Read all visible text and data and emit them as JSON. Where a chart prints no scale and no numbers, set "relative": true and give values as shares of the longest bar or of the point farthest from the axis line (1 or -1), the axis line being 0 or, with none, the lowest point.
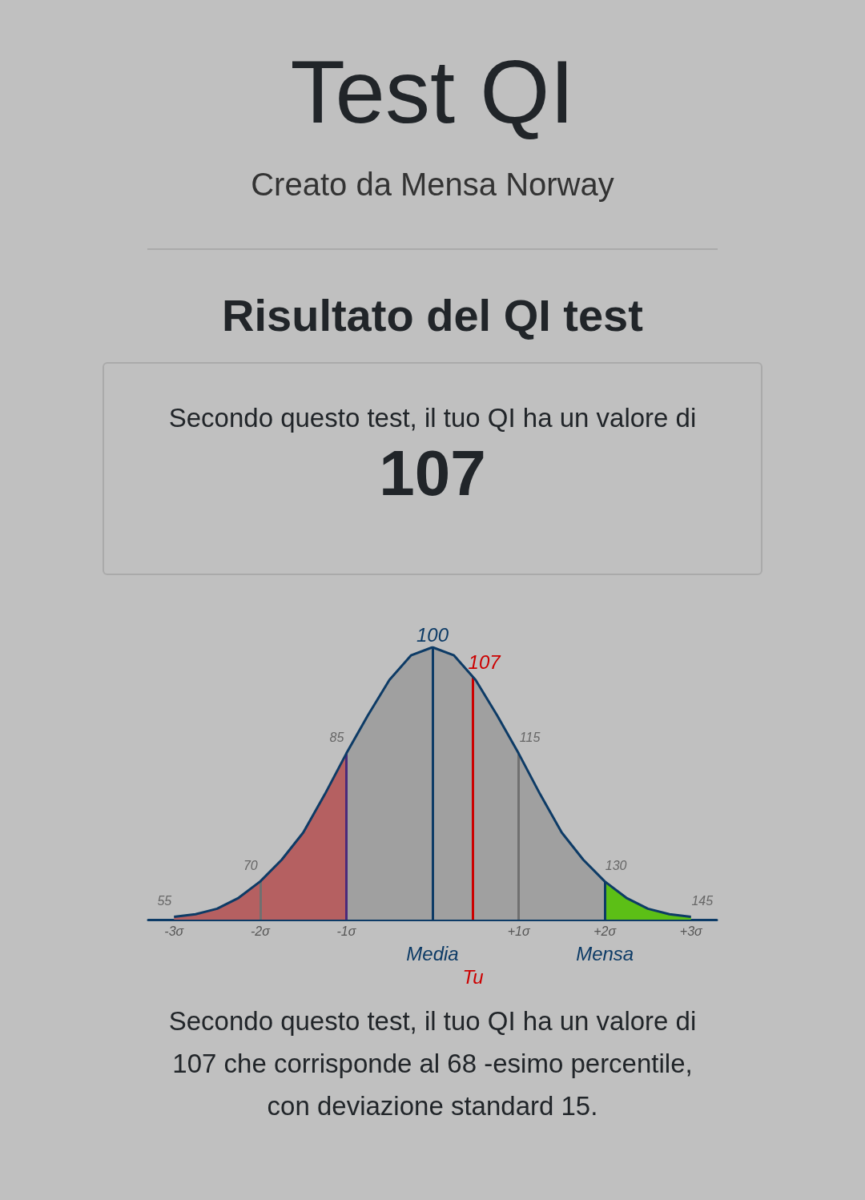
{
  "chart_data": {
    "type": "line",
    "title": "Test QI",
    "subtitle": "Creato da Mensa Norway",
    "annotations": [
      "Risultato del QI test",
      "Secondo questo test, il tuo QI ha un valore di",
      "107",
      "Secondo questo test, il tuo QI ha un valore di 107 che corrisponde al 68 -esimo percentile, con deviazione standard 15.",
      {
        "text": "55",
        "x": -3,
        "y": 0.01
      },
      {
        "text": "70",
        "x": -2,
        "y": 0.14
      },
      {
        "text": "85",
        "x": -1,
        "y": 0.61
      },
      {
        "text": "100",
        "x": 0,
        "y": 1
      },
      {
        "text": "107",
        "x": 0.47,
        "y": 0.9
      },
      {
        "text": "115",
        "x": 1,
        "y": 0.61
      },
      {
        "text": "130",
        "x": 2,
        "y": 0.14
      },
      {
        "text": "145",
        "x": 3,
        "y": 0.01
      }
    ],
    "series": [
      {
        "type": "area",
        "color": "#b56061",
        "x": [
          -3,
          -2.75,
          -2.5,
          -2.25,
          -2,
          -1.75,
          -1.5,
          -1.25,
          -1
        ],
        "values": [
          0.01,
          0.02,
          0.04,
          0.08,
          0.14,
          0.22,
          0.32,
          0.46,
          0.61
        ]
      },
      {
        "type": "area",
        "color": "#a0a0a0",
        "x": [
          -1,
          -0.75,
          -0.5,
          -0.25,
          0,
          0.25,
          0.5,
          0.75,
          1,
          1.25,
          1.5,
          1.75,
          2
        ],
        "values": [
          0.61,
          0.75,
          0.88,
          0.97,
          1,
          0.97,
          0.88,
          0.75,
          0.61,
          0.46,
          0.32,
          0.22,
          0.14
        ]
      },
      {
        "type": "area",
        "color": "#5cbf16",
        "x": [
          2,
          2.25,
          2.5,
          2.75,
          3
        ],
        "values": [
          0.14,
          0.08,
          0.04,
          0.02,
          0.01
        ]
      },
      {
        "color": "#0d3b66",
        "x": [
          -3,
          -2.75,
          -2.5,
          -2.25,
          -2,
          -1.75,
          -1.5,
          -1.25,
          -1,
          -0.75,
          -0.5,
          -0.25,
          0,
          0.25,
          0.5,
          0.75,
          1,
          1.25,
          1.5,
          1.75,
          2,
          2.25,
          2.5,
          2.75,
          3
        ],
        "values": [
          0.01,
          0.02,
          0.04,
          0.08,
          0.14,
          0.22,
          0.32,
          0.46,
          0.61,
          0.75,
          0.88,
          0.97,
          1,
          0.97,
          0.88,
          0.75,
          0.61,
          0.46,
          0.32,
          0.22,
          0.14,
          0.08,
          0.04,
          0.02,
          0.01
        ]
      }
    ],
    "relative": true,
    "marker": "none",
    "line_style": "solid",
    "grid": false,
    "xlim": [
      -3.3,
      3.3
    ],
    "xticks": [
      {
        "value": -3,
        "label": "-3σ"
      },
      {
        "value": -2,
        "label": "-2σ"
      },
      {
        "value": -1,
        "label": "-1σ"
      },
      {
        "value": 1,
        "label": "+1σ"
      },
      {
        "value": 2,
        "label": "+2σ"
      },
      {
        "value": 3,
        "label": "+3σ"
      }
    ],
    "ref_lines": [
      {
        "axis": "x",
        "value": -2,
        "color": "#707070"
      },
      {
        "axis": "x",
        "value": -1,
        "color": "#4b2a7a"
      },
      {
        "axis": "x",
        "value": 0,
        "label": "Media",
        "color": "#0d3b66"
      },
      {
        "axis": "x",
        "value": 0.47,
        "label": "Tu",
        "color": "#cc0000"
      },
      {
        "axis": "x",
        "value": 1,
        "color": "#707070"
      },
      {
        "axis": "x",
        "value": 2,
        "label": "Mensa",
        "color": "#0d3b66"
      }
    ]
  }
}
